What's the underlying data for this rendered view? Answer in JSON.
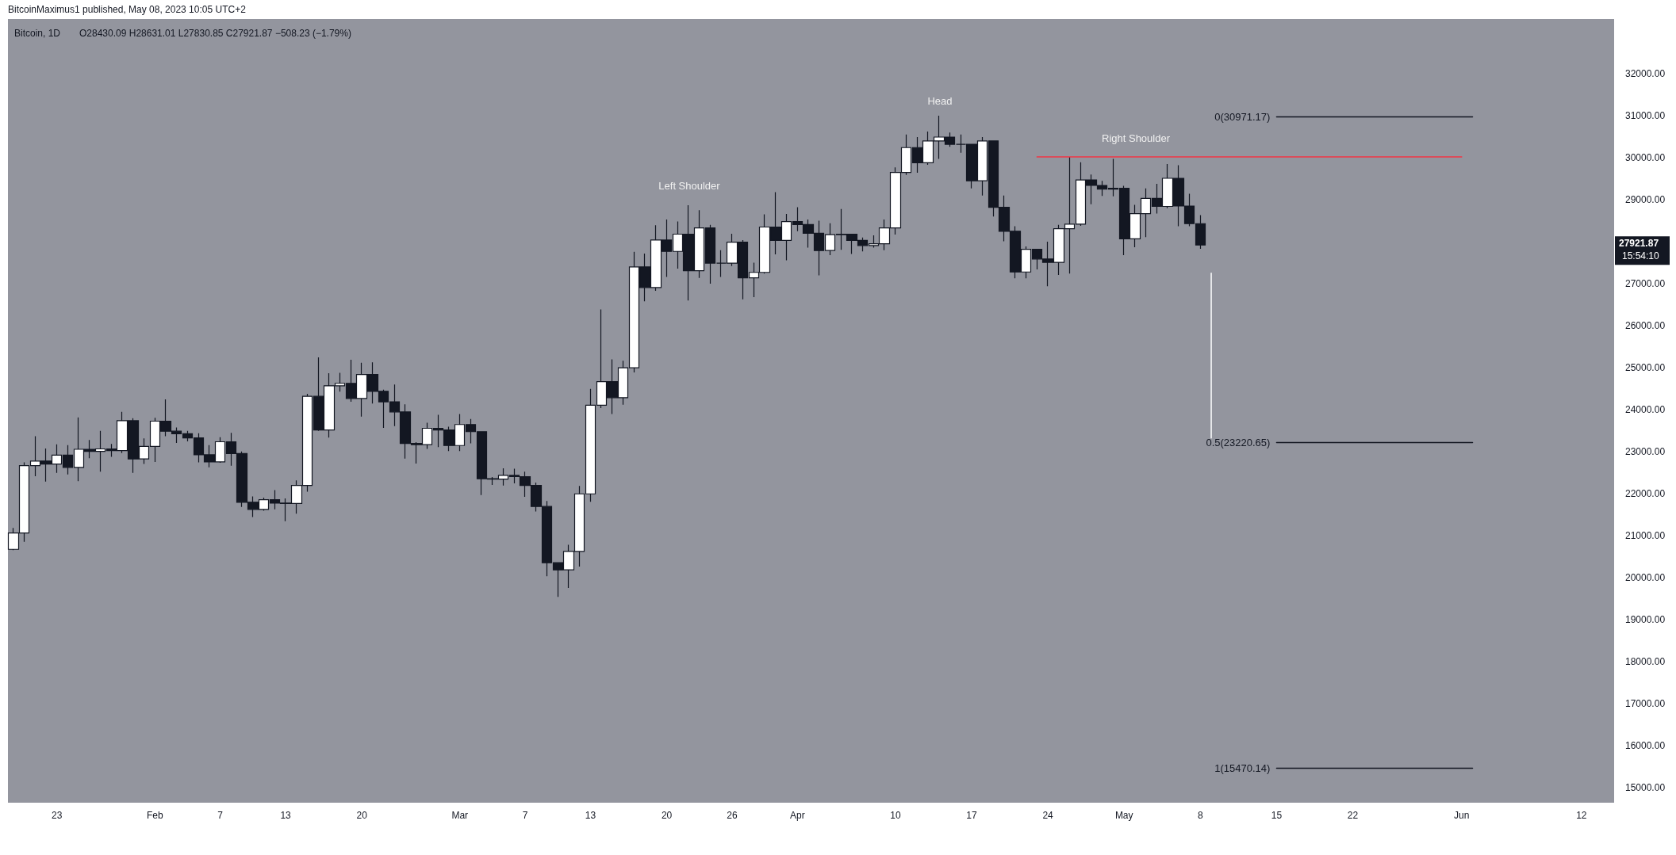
{
  "chart_data": {
    "type": "candlestick",
    "title": "Bitcoin, 1D",
    "annotations": [
      "BitcoinMaximus1 published, May 08, 2023 10:05 UTC+2",
      "O28430.09 H28631.01 L27830.85 C27921.87 −508.23 (−1.79%)",
      "27921.87",
      "15:54:10",
      "Left Shoulder",
      "Head",
      "Right Shoulder"
    ],
    "x": [
      "2023-01-19",
      "2023-01-20",
      "2023-01-21",
      "2023-01-22",
      "2023-01-23",
      "2023-01-24",
      "2023-01-25",
      "2023-01-26",
      "2023-01-27",
      "2023-01-28",
      "2023-01-29",
      "2023-01-30",
      "2023-01-31",
      "2023-02-01",
      "2023-02-02",
      "2023-02-03",
      "2023-02-04",
      "2023-02-05",
      "2023-02-06",
      "2023-02-07",
      "2023-02-08",
      "2023-02-09",
      "2023-02-10",
      "2023-02-11",
      "2023-02-12",
      "2023-02-13",
      "2023-02-14",
      "2023-02-15",
      "2023-02-16",
      "2023-02-17",
      "2023-02-18",
      "2023-02-19",
      "2023-02-20",
      "2023-02-21",
      "2023-02-22",
      "2023-02-23",
      "2023-02-24",
      "2023-02-25",
      "2023-02-26",
      "2023-02-27",
      "2023-02-28",
      "2023-03-01",
      "2023-03-02",
      "2023-03-03",
      "2023-03-04",
      "2023-03-05",
      "2023-03-06",
      "2023-03-07",
      "2023-03-08",
      "2023-03-09",
      "2023-03-10",
      "2023-03-11",
      "2023-03-12",
      "2023-03-13",
      "2023-03-14",
      "2023-03-15",
      "2023-03-16",
      "2023-03-17",
      "2023-03-18",
      "2023-03-19",
      "2023-03-20",
      "2023-03-21",
      "2023-03-22",
      "2023-03-23",
      "2023-03-24",
      "2023-03-25",
      "2023-03-26",
      "2023-03-27",
      "2023-03-28",
      "2023-03-29",
      "2023-03-30",
      "2023-03-31",
      "2023-04-01",
      "2023-04-02",
      "2023-04-03",
      "2023-04-04",
      "2023-04-05",
      "2023-04-06",
      "2023-04-07",
      "2023-04-08",
      "2023-04-09",
      "2023-04-10",
      "2023-04-11",
      "2023-04-12",
      "2023-04-13",
      "2023-04-14",
      "2023-04-15",
      "2023-04-16",
      "2023-04-17",
      "2023-04-18",
      "2023-04-19",
      "2023-04-20",
      "2023-04-21",
      "2023-04-22",
      "2023-04-23",
      "2023-04-24",
      "2023-04-25",
      "2023-04-26",
      "2023-04-27",
      "2023-04-28",
      "2023-04-29",
      "2023-04-30",
      "2023-05-01",
      "2023-05-02",
      "2023-05-03",
      "2023-05-04",
      "2023-05-05",
      "2023-05-06",
      "2023-05-07",
      "2023-05-08"
    ],
    "ohlc": [
      [
        20680,
        21190,
        20660,
        21070
      ],
      [
        21070,
        22750,
        20860,
        22670
      ],
      [
        22670,
        23370,
        22420,
        22780
      ],
      [
        22780,
        23080,
        22290,
        22710
      ],
      [
        22710,
        23180,
        22500,
        22920
      ],
      [
        22920,
        23160,
        22460,
        22630
      ],
      [
        22630,
        23820,
        22300,
        23060
      ],
      [
        23060,
        23280,
        22850,
        23010
      ],
      [
        23010,
        23500,
        22530,
        23070
      ],
      [
        23070,
        23190,
        22880,
        23030
      ],
      [
        23030,
        23950,
        22970,
        23740
      ],
      [
        23740,
        23800,
        22500,
        22830
      ],
      [
        22830,
        23320,
        22710,
        23130
      ],
      [
        23130,
        23810,
        22760,
        23730
      ],
      [
        23730,
        24250,
        23370,
        23490
      ],
      [
        23490,
        23580,
        23210,
        23430
      ],
      [
        23430,
        23500,
        23250,
        23330
      ],
      [
        23330,
        23440,
        22750,
        22930
      ],
      [
        22930,
        23160,
        22630,
        22760
      ],
      [
        22760,
        23350,
        22740,
        23240
      ],
      [
        23240,
        23450,
        22670,
        22960
      ],
      [
        22960,
        23010,
        21690,
        21800
      ],
      [
        21800,
        21940,
        21450,
        21630
      ],
      [
        21630,
        21910,
        21600,
        21860
      ],
      [
        21860,
        22090,
        21630,
        21780
      ],
      [
        21780,
        21890,
        21350,
        21770
      ],
      [
        21770,
        22320,
        21530,
        22200
      ],
      [
        22200,
        24380,
        22050,
        24320
      ],
      [
        24320,
        25250,
        23500,
        23520
      ],
      [
        23520,
        24870,
        23340,
        24570
      ],
      [
        24570,
        24880,
        24430,
        24630
      ],
      [
        24630,
        25190,
        24190,
        24270
      ],
      [
        24270,
        25120,
        23840,
        24840
      ],
      [
        24840,
        25130,
        24150,
        24440
      ],
      [
        24440,
        24480,
        23570,
        24190
      ],
      [
        24190,
        24600,
        23610,
        23950
      ],
      [
        23950,
        24130,
        22840,
        23200
      ],
      [
        23200,
        23230,
        22720,
        23170
      ],
      [
        23170,
        23690,
        23070,
        23560
      ],
      [
        23560,
        23880,
        23110,
        23520
      ],
      [
        23520,
        23600,
        23020,
        23150
      ],
      [
        23150,
        23900,
        23020,
        23650
      ],
      [
        23650,
        23780,
        23200,
        23480
      ],
      [
        23480,
        23480,
        21970,
        22360
      ],
      [
        22360,
        22400,
        22210,
        22350
      ],
      [
        22350,
        22610,
        22200,
        22440
      ],
      [
        22440,
        22600,
        22250,
        22410
      ],
      [
        22410,
        22530,
        21930,
        22200
      ],
      [
        22200,
        22270,
        21580,
        21700
      ],
      [
        21700,
        21830,
        20040,
        20360
      ],
      [
        20360,
        20370,
        19550,
        20190
      ],
      [
        20190,
        20790,
        19760,
        20630
      ],
      [
        20630,
        22190,
        20270,
        22000
      ],
      [
        22000,
        24500,
        21810,
        24110
      ],
      [
        24110,
        26390,
        24040,
        24670
      ],
      [
        24670,
        25200,
        23900,
        24290
      ],
      [
        24290,
        25170,
        24120,
        25000
      ],
      [
        25000,
        27760,
        24890,
        27400
      ],
      [
        27400,
        27720,
        26580,
        26910
      ],
      [
        26910,
        28390,
        26830,
        28040
      ],
      [
        28040,
        28530,
        27160,
        27770
      ],
      [
        27770,
        28480,
        27360,
        28180
      ],
      [
        28180,
        28870,
        26600,
        27310
      ],
      [
        27310,
        28750,
        27140,
        28330
      ],
      [
        28330,
        28400,
        27000,
        27490
      ],
      [
        27490,
        27800,
        27160,
        27490
      ],
      [
        27490,
        28190,
        27420,
        27990
      ],
      [
        27990,
        28040,
        26630,
        27140
      ],
      [
        27140,
        27500,
        26680,
        27270
      ],
      [
        27270,
        28650,
        27240,
        28350
      ],
      [
        28350,
        29180,
        27700,
        28030
      ],
      [
        28030,
        28660,
        27560,
        28480
      ],
      [
        28480,
        28820,
        28250,
        28410
      ],
      [
        28410,
        28530,
        27860,
        28200
      ],
      [
        28200,
        28500,
        27200,
        27790
      ],
      [
        27790,
        28440,
        27680,
        28170
      ],
      [
        28170,
        28780,
        27810,
        28180
      ],
      [
        28180,
        28190,
        27710,
        28030
      ],
      [
        28030,
        28100,
        27770,
        27910
      ],
      [
        27910,
        28150,
        27860,
        27950
      ],
      [
        27950,
        28530,
        27800,
        28330
      ],
      [
        28330,
        29770,
        28170,
        29650
      ],
      [
        29650,
        30550,
        29590,
        30240
      ],
      [
        30240,
        30490,
        29640,
        29880
      ],
      [
        29880,
        30620,
        29830,
        30400
      ],
      [
        30400,
        31000,
        29970,
        30490
      ],
      [
        30490,
        30600,
        30260,
        30320
      ],
      [
        30320,
        30550,
        30120,
        30320
      ],
      [
        30320,
        30320,
        29270,
        29450
      ],
      [
        29450,
        30490,
        29100,
        30400
      ],
      [
        30400,
        30410,
        28600,
        28820
      ],
      [
        28820,
        29100,
        28010,
        28250
      ],
      [
        28250,
        28370,
        27130,
        27280
      ],
      [
        27280,
        27890,
        27130,
        27820
      ],
      [
        27820,
        27820,
        27340,
        27590
      ],
      [
        27590,
        28000,
        26940,
        27510
      ],
      [
        27510,
        28400,
        27210,
        28310
      ],
      [
        28310,
        30020,
        27240,
        28420
      ],
      [
        28420,
        29890,
        28380,
        29470
      ],
      [
        29470,
        29600,
        28890,
        29340
      ],
      [
        29340,
        29450,
        29090,
        29250
      ],
      [
        29250,
        29970,
        29080,
        29270
      ],
      [
        29270,
        29330,
        27680,
        28070
      ],
      [
        28070,
        28880,
        27870,
        28670
      ],
      [
        28670,
        29270,
        28110,
        29030
      ],
      [
        29030,
        29380,
        28670,
        28840
      ],
      [
        28840,
        29850,
        28800,
        29510
      ],
      [
        29510,
        29820,
        28370,
        28850
      ],
      [
        28850,
        29140,
        28370,
        28430
      ],
      [
        28430.09,
        28631.01,
        27830.85,
        27921.87
      ]
    ],
    "series": [
      {
        "type": "line",
        "color": "#f23645",
        "x": [
          "2023-04-23",
          "2023-06-01"
        ],
        "values": [
          30020,
          30020
        ]
      },
      {
        "type": "line",
        "color": "#131722",
        "x": [
          "2023-05-15",
          "2023-06-02"
        ],
        "values": [
          30971.17,
          30971.17
        ],
        "value_labels": [
          "0(30971.17)",
          null
        ]
      },
      {
        "type": "line",
        "color": "#131722",
        "x": [
          "2023-05-15",
          "2023-06-02"
        ],
        "values": [
          23220.65,
          23220.65
        ],
        "value_labels": [
          "0.5(23220.65)",
          null
        ]
      },
      {
        "type": "line",
        "color": "#131722",
        "x": [
          "2023-05-15",
          "2023-06-02"
        ],
        "values": [
          15470.14,
          15470.14
        ],
        "value_labels": [
          "1(15470.14)",
          null
        ]
      },
      {
        "type": "line",
        "color": "#ffffff",
        "x": [
          "2023-05-09",
          "2023-05-09"
        ],
        "values": [
          27250,
          23330
        ]
      }
    ],
    "xlim": [
      "2023-01-18T12:00",
      "2023-06-15"
    ],
    "xticks": [
      {
        "value": "2023-01-23",
        "label": "23"
      },
      {
        "value": "2023-02-01",
        "label": "Feb"
      },
      {
        "value": "2023-02-07",
        "label": "7"
      },
      {
        "value": "2023-02-13",
        "label": "13"
      },
      {
        "value": "2023-02-20",
        "label": "20"
      },
      {
        "value": "2023-03-01",
        "label": "Mar"
      },
      {
        "value": "2023-03-07",
        "label": "7"
      },
      {
        "value": "2023-03-13",
        "label": "13"
      },
      {
        "value": "2023-03-20",
        "label": "20"
      },
      {
        "value": "2023-03-26",
        "label": "26"
      },
      {
        "value": "2023-04-01",
        "label": "Apr"
      },
      {
        "value": "2023-04-10",
        "label": "10"
      },
      {
        "value": "2023-04-17",
        "label": "17"
      },
      {
        "value": "2023-04-24",
        "label": "24"
      },
      {
        "value": "2023-05-01",
        "label": "May"
      },
      {
        "value": "2023-05-08",
        "label": "8"
      },
      {
        "value": "2023-05-15",
        "label": "15"
      },
      {
        "value": "2023-05-22",
        "label": "22"
      },
      {
        "value": "2023-06-01",
        "label": "Jun"
      },
      {
        "value": "2023-06-12",
        "label": "12"
      }
    ],
    "ylim": [
      14650,
      33300
    ],
    "yticks": [
      {
        "value": 15000,
        "label": "15000.00"
      },
      {
        "value": 16000,
        "label": "16000.00"
      },
      {
        "value": 17000,
        "label": "17000.00"
      },
      {
        "value": 18000,
        "label": "18000.00"
      },
      {
        "value": 19000,
        "label": "19000.00"
      },
      {
        "value": 20000,
        "label": "20000.00"
      },
      {
        "value": 21000,
        "label": "21000.00"
      },
      {
        "value": 22000,
        "label": "22000.00"
      },
      {
        "value": 23000,
        "label": "23000.00"
      },
      {
        "value": 24000,
        "label": "24000.00"
      },
      {
        "value": 25000,
        "label": "25000.00"
      },
      {
        "value": 26000,
        "label": "26000.00"
      },
      {
        "value": 27000,
        "label": "27000.00"
      },
      {
        "value": 29000,
        "label": "29000.00"
      },
      {
        "value": 30000,
        "label": "30000.00"
      },
      {
        "value": 31000,
        "label": "31000.00"
      },
      {
        "value": 32000,
        "label": "32000.00"
      }
    ]
  }
}
